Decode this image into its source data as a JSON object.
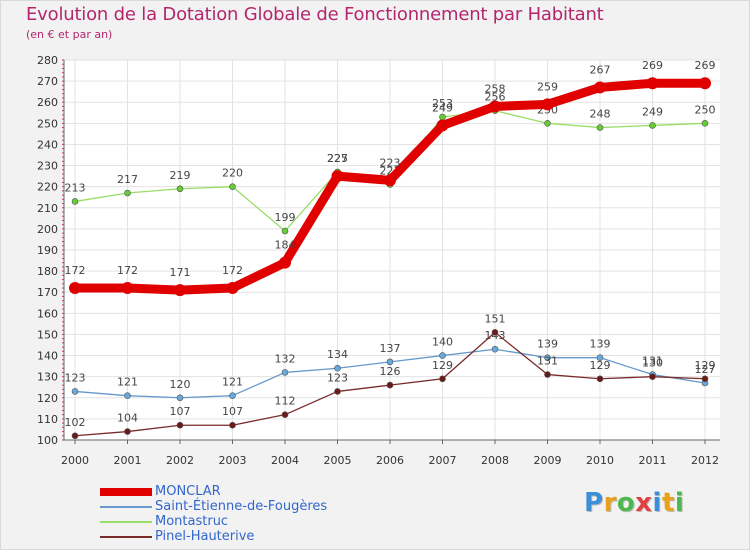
{
  "header": {
    "title": "Evolution de la Dotation Globale de Fonctionnement par Habitant",
    "subtitle": "(en € et par an)"
  },
  "logo": {
    "letters": [
      "P",
      "r",
      "o",
      "x",
      "i",
      "t",
      "i"
    ],
    "colors": [
      "#3a8fd6",
      "#e8a21a",
      "#4db84d",
      "#e04040",
      "#3a8fd6",
      "#e8a21a",
      "#4db84d"
    ]
  },
  "chart_data": {
    "type": "line",
    "title": "Evolution de la Dotation Globale de Fonctionnement par Habitant",
    "ylabel": "(en € et par an)",
    "xlabel": "",
    "x": [
      "2000",
      "2001",
      "2002",
      "2003",
      "2004",
      "2005",
      "2006",
      "2007",
      "2008",
      "2009",
      "2010",
      "2011",
      "2012"
    ],
    "ylim": [
      100,
      280
    ],
    "yticks": [
      100,
      110,
      120,
      130,
      140,
      150,
      160,
      170,
      180,
      190,
      200,
      210,
      220,
      230,
      240,
      250,
      260,
      270,
      280
    ],
    "grid": true,
    "legend_position": "bottom-left",
    "series": [
      {
        "name": "MONCLAR",
        "color": "#e00000",
        "fill": "#e00000",
        "values": [
          172,
          172,
          171,
          172,
          184,
          225,
          223,
          249,
          258,
          259,
          267,
          269,
          269
        ],
        "labels": [
          "172",
          "172",
          "171",
          "172",
          "184",
          "225",
          "223",
          "249",
          "258",
          "259",
          "267",
          "269",
          "269"
        ]
      },
      {
        "name": "Saint-Étienne-de-Fougères",
        "color": "#6699cc",
        "fill": "#66aadd",
        "values": [
          123,
          121,
          120,
          121,
          132,
          134,
          137,
          140,
          143,
          139,
          139,
          131,
          127
        ],
        "labels": [
          "123",
          "121",
          "120",
          "121",
          "132",
          "134",
          "137",
          "140",
          "143",
          "139",
          "139",
          "131",
          "127"
        ]
      },
      {
        "name": "Montastruc",
        "color": "#99dd66",
        "fill": "#66cc33",
        "values": [
          213,
          217,
          219,
          220,
          199,
          227,
          221,
          253,
          256,
          250,
          248,
          249,
          250
        ],
        "labels": [
          "213",
          "217",
          "219",
          "220",
          "199",
          "227",
          "221",
          "253",
          "256",
          "250",
          "248",
          "249",
          "250"
        ]
      },
      {
        "name": "Pinel-Hauterive",
        "color": "#7a2a2a",
        "fill": "#6b1a1a",
        "values": [
          102,
          104,
          107,
          107,
          112,
          123,
          126,
          129,
          151,
          131,
          129,
          130,
          129
        ],
        "labels": [
          "102",
          "104",
          "107",
          "107",
          "112",
          "123",
          "126",
          "129",
          "151",
          "131",
          "129",
          "130",
          "129"
        ]
      }
    ]
  }
}
